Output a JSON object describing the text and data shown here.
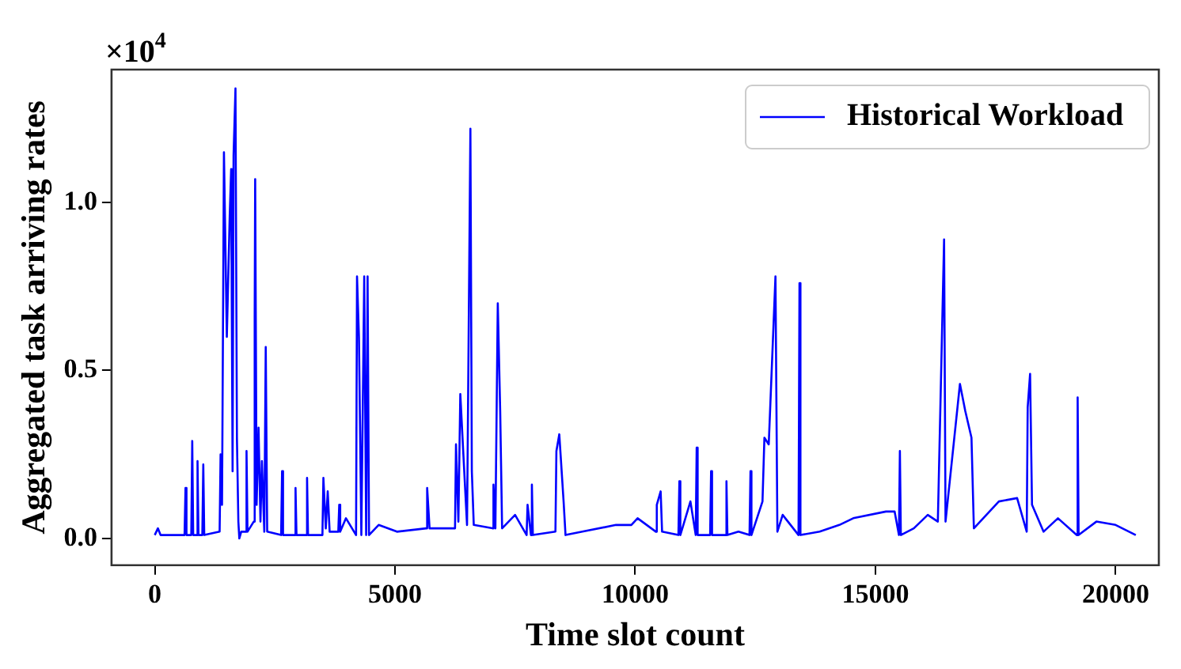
{
  "chart_data": {
    "type": "line",
    "xlabel": "Time slot count",
    "ylabel": "Aggregated task arriving rates",
    "annotations": [
      "×10$^{4}$"
    ],
    "xlim": [
      -900,
      20900
    ],
    "xticks": [
      0,
      5000,
      10000,
      15000,
      20000
    ],
    "ylim": [
      -0.08,
      1.396
    ],
    "yticks": [
      {
        "value": 0,
        "label": "0.0"
      },
      {
        "value": 0.5,
        "label": "0.5"
      },
      {
        "value": 1,
        "label": "1.0"
      }
    ],
    "grid": false,
    "legend": "top right",
    "marker": "none",
    "line_style": "solid",
    "x": [
      0,
      65,
      120,
      620,
      640,
      660,
      760,
      780,
      800,
      870,
      890,
      910,
      990,
      1010,
      1030,
      1350,
      1370,
      1400,
      1440,
      1500,
      1560,
      1590,
      1620,
      1640,
      1680,
      1710,
      1740,
      1760,
      1800,
      1890,
      1910,
      1930,
      2060,
      2080,
      2090,
      2120,
      2160,
      2200,
      2230,
      2280,
      2310,
      2340,
      2630,
      2650,
      2670,
      2910,
      2930,
      2950,
      3150,
      3170,
      3190,
      3490,
      3510,
      3560,
      3600,
      3640,
      3820,
      3840,
      3860,
      3980,
      4190,
      4210,
      4250,
      4300,
      4360,
      4400,
      4430,
      4460,
      4660,
      5040,
      5650,
      5670,
      5720,
      5920,
      6250,
      6270,
      6320,
      6360,
      6420,
      6500,
      6570,
      6600,
      6640,
      7030,
      7050,
      7090,
      7140,
      7190,
      7230,
      7500,
      7740,
      7760,
      7830,
      7850,
      7870,
      8340,
      8360,
      8420,
      8510,
      8550,
      8900,
      9600,
      9920,
      10050,
      10430,
      10450,
      10530,
      10560,
      10900,
      10920,
      10940,
      11150,
      11260,
      11280,
      11300,
      11560,
      11580,
      11600,
      11880,
      11900,
      11920,
      12150,
      12380,
      12400,
      12420,
      12650,
      12690,
      12780,
      12920,
      12960,
      13070,
      13400,
      13420,
      13440,
      13840,
      14250,
      14540,
      15220,
      15400,
      15490,
      15510,
      15530,
      15800,
      16090,
      16300,
      16430,
      16460,
      16760,
      16870,
      17000,
      17050,
      17570,
      17950,
      18150,
      18170,
      18220,
      18260,
      18500,
      18800,
      19190,
      19210,
      19230,
      19600,
      20000,
      20420
    ],
    "series": [
      {
        "name": "Historical Workload",
        "color": "#0000ff",
        "values": [
          0.01,
          0.03,
          0.01,
          0.01,
          0.15,
          0.01,
          0.01,
          0.29,
          0.01,
          0.01,
          0.23,
          0.01,
          0.01,
          0.22,
          0.01,
          0.02,
          0.25,
          0.1,
          1.15,
          0.6,
          0.96,
          1.1,
          0.2,
          1.14,
          1.34,
          0.3,
          0.05,
          0,
          0.02,
          0.02,
          0.26,
          0.02,
          0.05,
          0.66,
          1.07,
          0.1,
          0.33,
          0.05,
          0.23,
          0.02,
          0.57,
          0.02,
          0.01,
          0.2,
          0.01,
          0.01,
          0.15,
          0.01,
          0.01,
          0.18,
          0.01,
          0.01,
          0.18,
          0.03,
          0.14,
          0.02,
          0.02,
          0.1,
          0.02,
          0.06,
          0.01,
          0.78,
          0.6,
          0.01,
          0.78,
          0.01,
          0.78,
          0.01,
          0.04,
          0.02,
          0.03,
          0.15,
          0.03,
          0.03,
          0.03,
          0.28,
          0.05,
          0.43,
          0.26,
          0.04,
          1.22,
          0.2,
          0.04,
          0.03,
          0.16,
          0.03,
          0.7,
          0.38,
          0.03,
          0.07,
          0.01,
          0.1,
          0.01,
          0.16,
          0.01,
          0.02,
          0.26,
          0.31,
          0.11,
          0.01,
          0.02,
          0.04,
          0.04,
          0.06,
          0.02,
          0.1,
          0.14,
          0.02,
          0.01,
          0.17,
          0.01,
          0.11,
          0.01,
          0.27,
          0.01,
          0.01,
          0.2,
          0.01,
          0.01,
          0.17,
          0.01,
          0.02,
          0.01,
          0.2,
          0.01,
          0.11,
          0.3,
          0.28,
          0.78,
          0.02,
          0.07,
          0.01,
          0.76,
          0.01,
          0.02,
          0.04,
          0.06,
          0.08,
          0.08,
          0.01,
          0.26,
          0.01,
          0.03,
          0.07,
          0.05,
          0.89,
          0.05,
          0.46,
          0.38,
          0.3,
          0.03,
          0.11,
          0.12,
          0.02,
          0.39,
          0.49,
          0.1,
          0.02,
          0.06,
          0.01,
          0.42,
          0.01,
          0.05,
          0.04,
          0.01
        ]
      }
    ]
  }
}
